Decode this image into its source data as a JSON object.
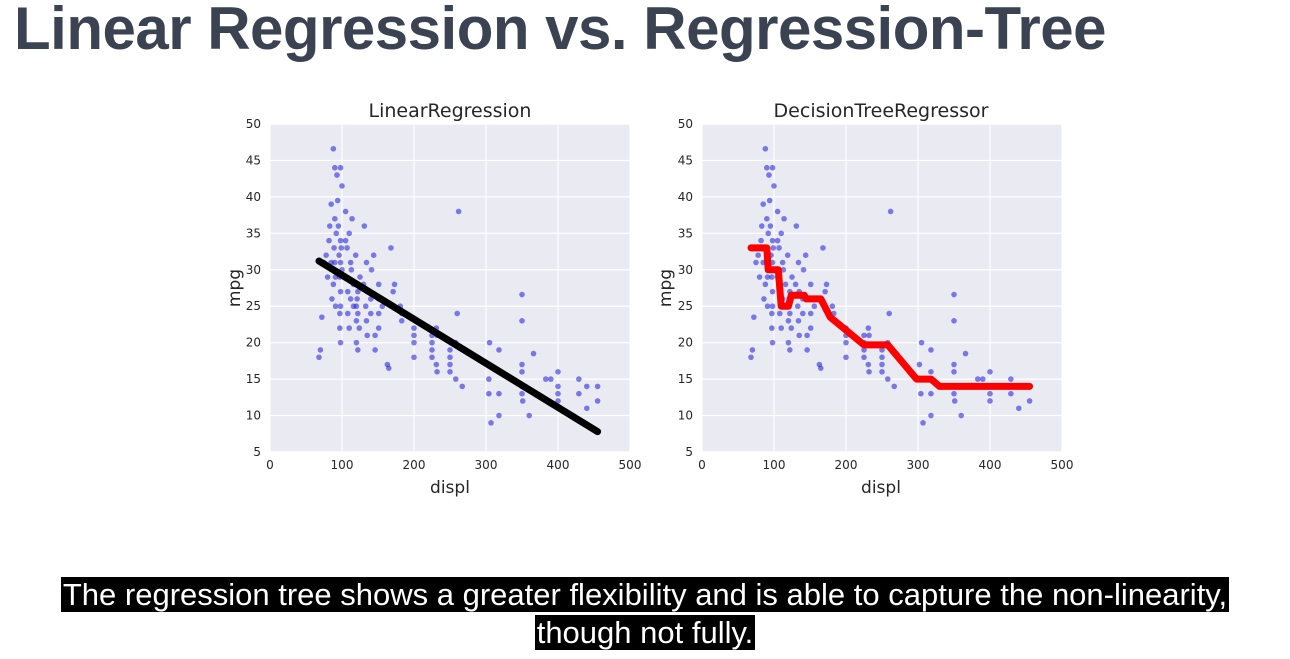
{
  "slide": {
    "title": "Linear Regression vs. Regression-Tree",
    "caption_line1": "The regression tree shows a greater flexibility and is able to capture the non-linearity,",
    "caption_line2": "though not fully."
  },
  "colors": {
    "plot_background": "#eaeaf2",
    "grid": "#ffffff",
    "points": "#1a1ad8",
    "linear_fit": "#000000",
    "tree_fit": "#ff0000",
    "title_text": "#3b4252"
  },
  "chart_data": [
    {
      "type": "scatter",
      "title": "LinearRegression",
      "xlabel": "displ",
      "ylabel": "mpg",
      "xlim": [
        0,
        500
      ],
      "ylim": [
        5,
        50
      ],
      "xticks": [
        0,
        100,
        200,
        300,
        400,
        500
      ],
      "yticks": [
        5,
        10,
        15,
        20,
        25,
        30,
        35,
        40,
        45,
        50
      ],
      "grid": true,
      "points": [
        [
          68,
          18
        ],
        [
          70,
          19
        ],
        [
          72,
          23.5
        ],
        [
          75,
          31
        ],
        [
          78,
          32
        ],
        [
          80,
          29
        ],
        [
          82,
          34
        ],
        [
          83,
          36
        ],
        [
          85,
          39
        ],
        [
          85,
          31
        ],
        [
          86,
          26
        ],
        [
          88,
          46.6
        ],
        [
          88,
          28
        ],
        [
          89,
          33
        ],
        [
          90,
          44
        ],
        [
          90,
          37
        ],
        [
          90,
          31
        ],
        [
          91,
          29
        ],
        [
          91,
          25
        ],
        [
          92,
          35
        ],
        [
          93,
          43
        ],
        [
          94,
          39.5
        ],
        [
          95,
          36
        ],
        [
          96,
          32
        ],
        [
          97,
          29
        ],
        [
          97,
          24
        ],
        [
          97,
          22
        ],
        [
          98,
          44
        ],
        [
          98,
          34
        ],
        [
          98,
          31
        ],
        [
          98,
          27
        ],
        [
          98,
          25
        ],
        [
          98,
          20
        ],
        [
          99,
          33
        ],
        [
          100,
          41.5
        ],
        [
          100,
          30
        ],
        [
          105,
          38
        ],
        [
          105,
          34
        ],
        [
          105,
          29
        ],
        [
          107,
          33
        ],
        [
          108,
          27
        ],
        [
          108,
          24
        ],
        [
          110,
          35
        ],
        [
          110,
          22
        ],
        [
          112,
          31
        ],
        [
          112,
          26
        ],
        [
          113,
          30
        ],
        [
          114,
          37
        ],
        [
          116,
          28
        ],
        [
          116,
          25
        ],
        [
          119,
          32
        ],
        [
          120,
          25
        ],
        [
          120,
          23
        ],
        [
          120,
          20
        ],
        [
          121,
          26
        ],
        [
          122,
          24
        ],
        [
          122,
          19
        ],
        [
          122,
          27
        ],
        [
          124,
          22
        ],
        [
          125,
          29
        ],
        [
          130,
          28
        ],
        [
          131,
          36
        ],
        [
          133,
          25
        ],
        [
          134,
          31
        ],
        [
          134,
          23
        ],
        [
          135,
          27
        ],
        [
          135,
          21
        ],
        [
          140,
          26
        ],
        [
          140,
          24
        ],
        [
          141,
          30
        ],
        [
          144,
          32
        ],
        [
          146,
          21
        ],
        [
          146,
          19
        ],
        [
          151,
          26
        ],
        [
          151,
          28
        ],
        [
          151,
          24
        ],
        [
          151,
          22
        ],
        [
          156,
          25
        ],
        [
          163,
          17
        ],
        [
          165,
          16.5
        ],
        [
          168,
          33
        ],
        [
          171,
          27
        ],
        [
          173,
          28
        ],
        [
          181,
          25
        ],
        [
          183,
          24
        ],
        [
          183,
          23
        ],
        [
          200,
          22
        ],
        [
          200,
          18
        ],
        [
          200,
          20
        ],
        [
          200,
          21
        ],
        [
          225,
          18
        ],
        [
          225,
          19
        ],
        [
          225,
          20
        ],
        [
          225,
          21
        ],
        [
          231,
          22
        ],
        [
          231,
          17
        ],
        [
          232,
          16
        ],
        [
          232,
          21
        ],
        [
          250,
          17
        ],
        [
          250,
          18
        ],
        [
          250,
          19
        ],
        [
          250,
          16
        ],
        [
          258,
          15
        ],
        [
          258,
          20
        ],
        [
          260,
          24
        ],
        [
          262,
          38
        ],
        [
          267,
          14
        ],
        [
          302,
          17
        ],
        [
          304,
          13
        ],
        [
          304,
          15
        ],
        [
          305,
          20
        ],
        [
          307,
          9
        ],
        [
          318,
          10
        ],
        [
          318,
          16
        ],
        [
          318,
          13
        ],
        [
          318,
          19
        ],
        [
          350,
          13
        ],
        [
          350,
          16
        ],
        [
          350,
          14
        ],
        [
          350,
          17
        ],
        [
          350,
          26.6
        ],
        [
          350,
          23
        ],
        [
          351,
          12
        ],
        [
          360,
          10
        ],
        [
          366,
          18.5
        ],
        [
          383,
          15
        ],
        [
          390,
          15
        ],
        [
          400,
          14
        ],
        [
          400,
          16
        ],
        [
          400,
          12
        ],
        [
          400,
          13
        ],
        [
          429,
          15
        ],
        [
          429,
          13
        ],
        [
          440,
          14
        ],
        [
          440,
          11
        ],
        [
          455,
          14
        ],
        [
          455,
          12
        ]
      ],
      "fit_label": "LinearRegression",
      "fit_line": [
        [
          68,
          31.2
        ],
        [
          455,
          7.8
        ]
      ]
    },
    {
      "type": "scatter",
      "title": "DecisionTreeRegressor",
      "xlabel": "displ",
      "ylabel": "mpg",
      "xlim": [
        0,
        500
      ],
      "ylim": [
        5,
        50
      ],
      "xticks": [
        0,
        100,
        200,
        300,
        400,
        500
      ],
      "yticks": [
        5,
        10,
        15,
        20,
        25,
        30,
        35,
        40,
        45,
        50
      ],
      "grid": true,
      "same_points_as_first": true,
      "fit_label": "DecisionTreeRegressor",
      "fit_step": [
        [
          68,
          33
        ],
        [
          90,
          33
        ],
        [
          92,
          30
        ],
        [
          106,
          30
        ],
        [
          110,
          25
        ],
        [
          120,
          25
        ],
        [
          124,
          26.5
        ],
        [
          142,
          26.5
        ],
        [
          145,
          26
        ],
        [
          165,
          26
        ],
        [
          178,
          23.5
        ],
        [
          225,
          19.7
        ],
        [
          258,
          19.7
        ],
        [
          264,
          19
        ],
        [
          298,
          15
        ],
        [
          318,
          15
        ],
        [
          330,
          14
        ],
        [
          455,
          14
        ]
      ]
    }
  ]
}
